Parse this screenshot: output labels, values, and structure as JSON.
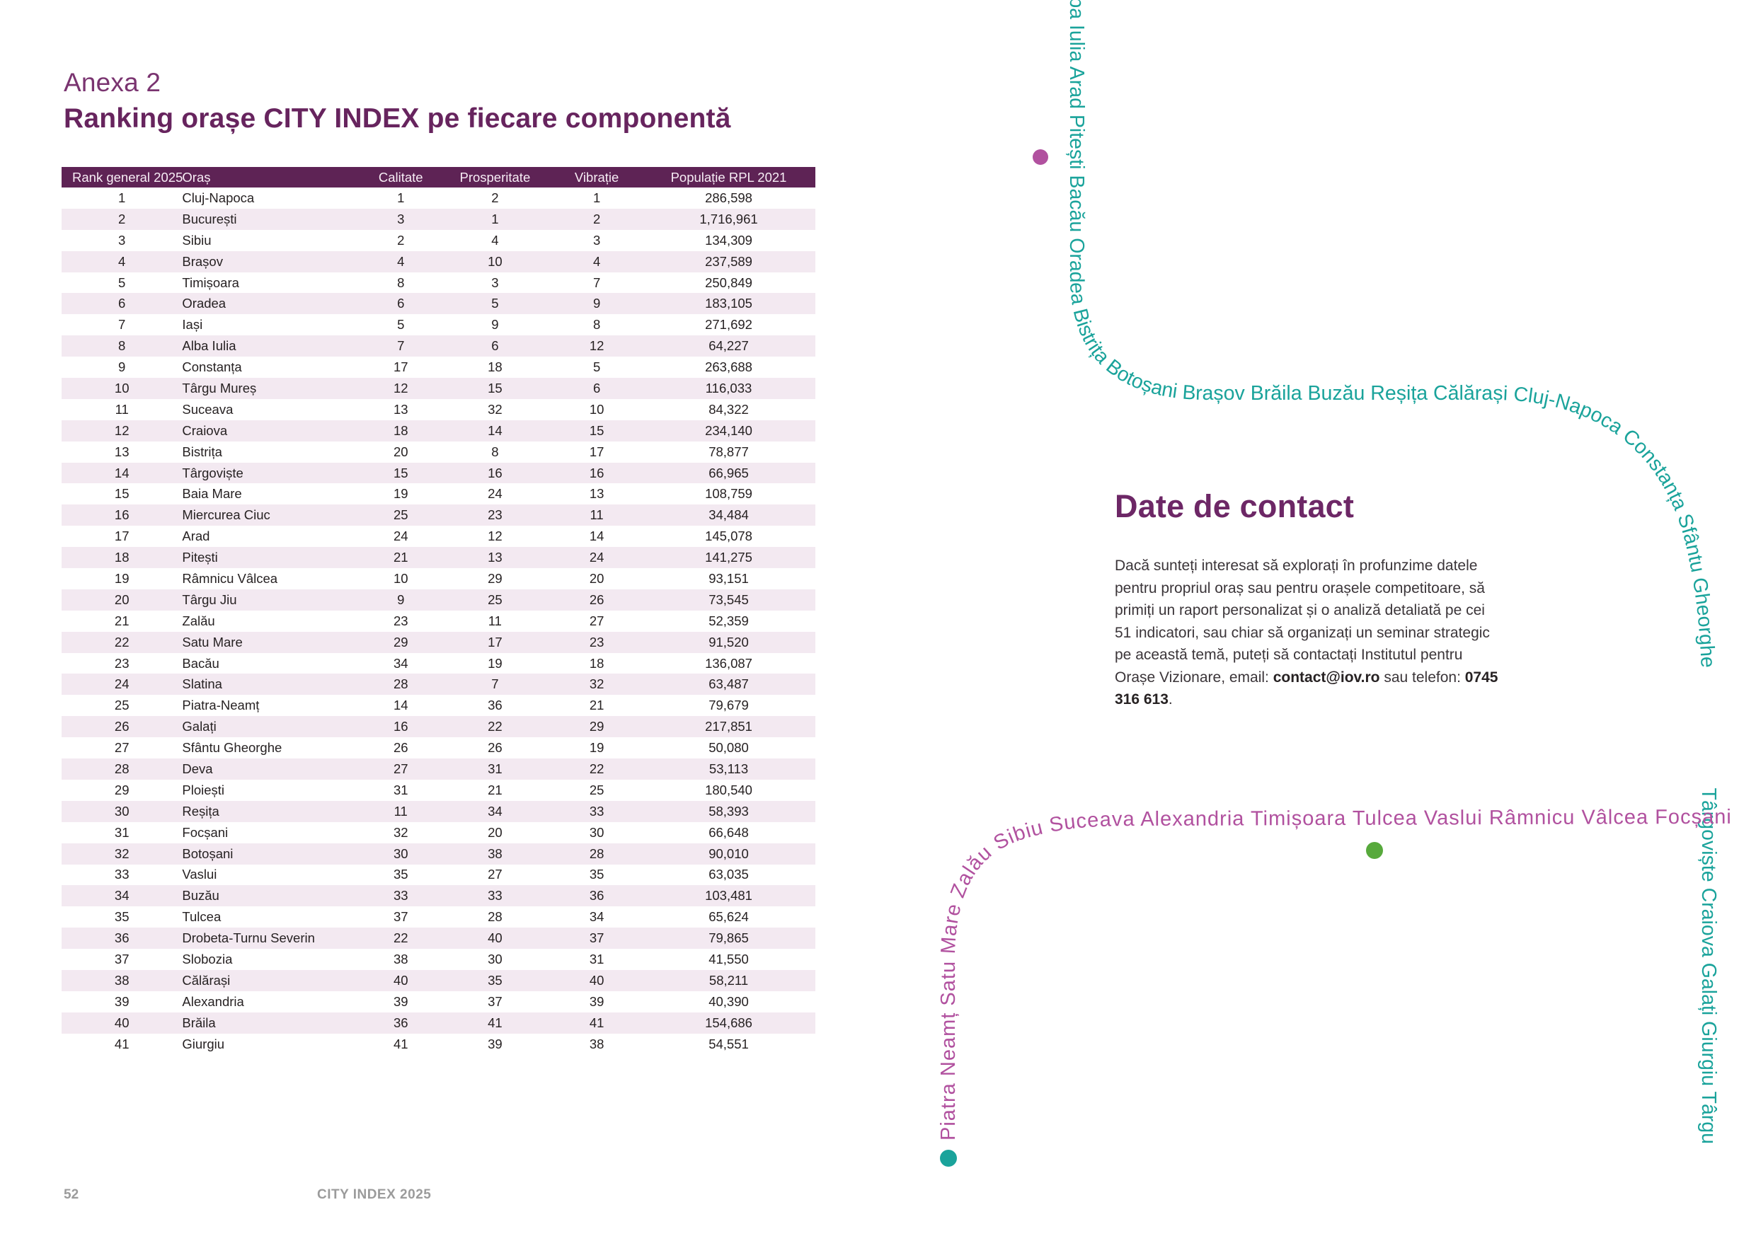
{
  "page": {
    "supertitle": "Anexa 2",
    "title": "Ranking orașe CITY INDEX pe fiecare componentă",
    "footer": {
      "page_number": "52",
      "report_name": "CITY INDEX 2025"
    }
  },
  "table": {
    "columns": [
      "Rank general 2025",
      "Oraș",
      "Calitate",
      "Prosperitate",
      "Vibrație",
      "Populație RPL 2021"
    ],
    "rows": [
      [
        "1",
        "Cluj-Napoca",
        "1",
        "2",
        "1",
        "286,598"
      ],
      [
        "2",
        "București",
        "3",
        "1",
        "2",
        "1,716,961"
      ],
      [
        "3",
        "Sibiu",
        "2",
        "4",
        "3",
        "134,309"
      ],
      [
        "4",
        "Brașov",
        "4",
        "10",
        "4",
        "237,589"
      ],
      [
        "5",
        "Timișoara",
        "8",
        "3",
        "7",
        "250,849"
      ],
      [
        "6",
        "Oradea",
        "6",
        "5",
        "9",
        "183,105"
      ],
      [
        "7",
        "Iași",
        "5",
        "9",
        "8",
        "271,692"
      ],
      [
        "8",
        "Alba Iulia",
        "7",
        "6",
        "12",
        "64,227"
      ],
      [
        "9",
        "Constanța",
        "17",
        "18",
        "5",
        "263,688"
      ],
      [
        "10",
        "Târgu Mureș",
        "12",
        "15",
        "6",
        "116,033"
      ],
      [
        "11",
        "Suceava",
        "13",
        "32",
        "10",
        "84,322"
      ],
      [
        "12",
        "Craiova",
        "18",
        "14",
        "15",
        "234,140"
      ],
      [
        "13",
        "Bistrița",
        "20",
        "8",
        "17",
        "78,877"
      ],
      [
        "14",
        "Târgoviște",
        "15",
        "16",
        "16",
        "66,965"
      ],
      [
        "15",
        "Baia Mare",
        "19",
        "24",
        "13",
        "108,759"
      ],
      [
        "16",
        "Miercurea Ciuc",
        "25",
        "23",
        "11",
        "34,484"
      ],
      [
        "17",
        "Arad",
        "24",
        "12",
        "14",
        "145,078"
      ],
      [
        "18",
        "Pitești",
        "21",
        "13",
        "24",
        "141,275"
      ],
      [
        "19",
        "Râmnicu Vâlcea",
        "10",
        "29",
        "20",
        "93,151"
      ],
      [
        "20",
        "Târgu Jiu",
        "9",
        "25",
        "26",
        "73,545"
      ],
      [
        "21",
        "Zalău",
        "23",
        "11",
        "27",
        "52,359"
      ],
      [
        "22",
        "Satu Mare",
        "29",
        "17",
        "23",
        "91,520"
      ],
      [
        "23",
        "Bacău",
        "34",
        "19",
        "18",
        "136,087"
      ],
      [
        "24",
        "Slatina",
        "28",
        "7",
        "32",
        "63,487"
      ],
      [
        "25",
        "Piatra-Neamț",
        "14",
        "36",
        "21",
        "79,679"
      ],
      [
        "26",
        "Galați",
        "16",
        "22",
        "29",
        "217,851"
      ],
      [
        "27",
        "Sfântu Gheorghe",
        "26",
        "26",
        "19",
        "50,080"
      ],
      [
        "28",
        "Deva",
        "27",
        "31",
        "22",
        "53,113"
      ],
      [
        "29",
        "Ploiești",
        "31",
        "21",
        "25",
        "180,540"
      ],
      [
        "30",
        "Reșița",
        "11",
        "34",
        "33",
        "58,393"
      ],
      [
        "31",
        "Focșani",
        "32",
        "20",
        "30",
        "66,648"
      ],
      [
        "32",
        "Botoșani",
        "30",
        "38",
        "28",
        "90,010"
      ],
      [
        "33",
        "Vaslui",
        "35",
        "27",
        "35",
        "63,035"
      ],
      [
        "34",
        "Buzău",
        "33",
        "33",
        "36",
        "103,481"
      ],
      [
        "35",
        "Tulcea",
        "37",
        "28",
        "34",
        "65,624"
      ],
      [
        "36",
        "Drobeta-Turnu Severin",
        "22",
        "40",
        "37",
        "79,865"
      ],
      [
        "37",
        "Slobozia",
        "38",
        "30",
        "31",
        "41,550"
      ],
      [
        "38",
        "Călărași",
        "40",
        "35",
        "40",
        "58,211"
      ],
      [
        "39",
        "Alexandria",
        "39",
        "37",
        "39",
        "40,390"
      ],
      [
        "40",
        "Brăila",
        "36",
        "41",
        "41",
        "154,686"
      ],
      [
        "41",
        "Giurgiu",
        "41",
        "39",
        "38",
        "54,551"
      ]
    ]
  },
  "contact": {
    "heading": "Date de contact",
    "body_before_email": "Dacă sunteți interesat să explorați în profunzime datele pentru propriul oraș sau pentru orașele competitoare, să primiți un raport personalizat și o analiză detaliată pe cei 51 indicatori, sau chiar să organizați un seminar strategic pe această temă, puteți să contactați Institutul pentru Orașe Vizionare, email: ",
    "email": "contact@iov.ro",
    "body_between": " sau telefon: ",
    "phone": "0745 316 613",
    "body_after": "."
  },
  "decor": {
    "teal_ribbon_text_part1": "Alba Iulia Arad Pitești Bacău Oradea Bistrița Botoșani Brașov Brăila Buzău Reșița Călărași Cluj-Napoca Constanța Sfântu Gheorghe",
    "teal_ribbon_text_part2": "Târgoviște Craiova Galați Giurgiu Târgu",
    "magenta_ribbon_text": "Piatra Neamț Satu Mare Zalău Sibiu Suceava Alexandria Timișoara Tulcea Vaslui Râmnicu Vâlcea Focșani"
  },
  "colors": {
    "title_purple": "#67245e",
    "header_bar_purple": "#5e2355",
    "row_stripe_pink": "#f3e9f1",
    "ribbon_teal": "#1aa39b",
    "ribbon_magenta": "#b1519f",
    "dot_green": "#57a93c",
    "footer_gray": "#9b9b9b"
  }
}
